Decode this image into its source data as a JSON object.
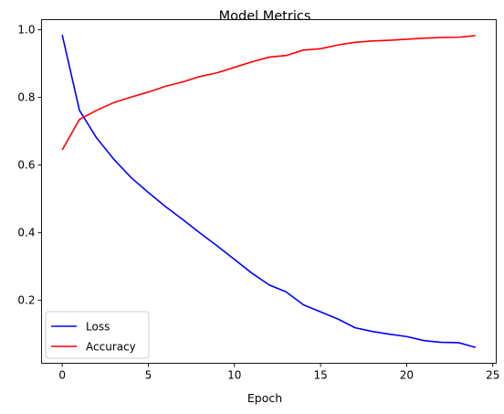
{
  "chart_data": {
    "type": "line",
    "title": "Model Metrics",
    "xlabel": "Epoch",
    "ylabel": "",
    "xlim": [
      -1.2,
      25.2
    ],
    "ylim": [
      0.014,
      1.03
    ],
    "xticks": [
      0,
      5,
      10,
      15,
      20,
      25
    ],
    "yticks": [
      0.2,
      0.4,
      0.6,
      0.8,
      1.0
    ],
    "grid": false,
    "legend_position": "lower-left",
    "x": [
      0,
      1,
      2,
      3,
      4,
      5,
      6,
      7,
      8,
      9,
      10,
      11,
      12,
      13,
      14,
      15,
      16,
      17,
      18,
      19,
      20,
      21,
      22,
      23,
      24
    ],
    "series": [
      {
        "name": "Loss",
        "color": "#0000ff",
        "values": [
          0.985,
          0.762,
          0.68,
          0.617,
          0.563,
          0.519,
          0.477,
          0.439,
          0.399,
          0.361,
          0.321,
          0.281,
          0.246,
          0.225,
          0.187,
          0.166,
          0.145,
          0.119,
          0.108,
          0.1,
          0.093,
          0.081,
          0.076,
          0.075,
          0.061
        ]
      },
      {
        "name": "Accuracy",
        "color": "#ff0000",
        "values": [
          0.645,
          0.735,
          0.762,
          0.785,
          0.801,
          0.816,
          0.833,
          0.846,
          0.862,
          0.873,
          0.889,
          0.905,
          0.919,
          0.924,
          0.94,
          0.944,
          0.955,
          0.963,
          0.967,
          0.969,
          0.972,
          0.975,
          0.977,
          0.978,
          0.983
        ]
      }
    ]
  }
}
